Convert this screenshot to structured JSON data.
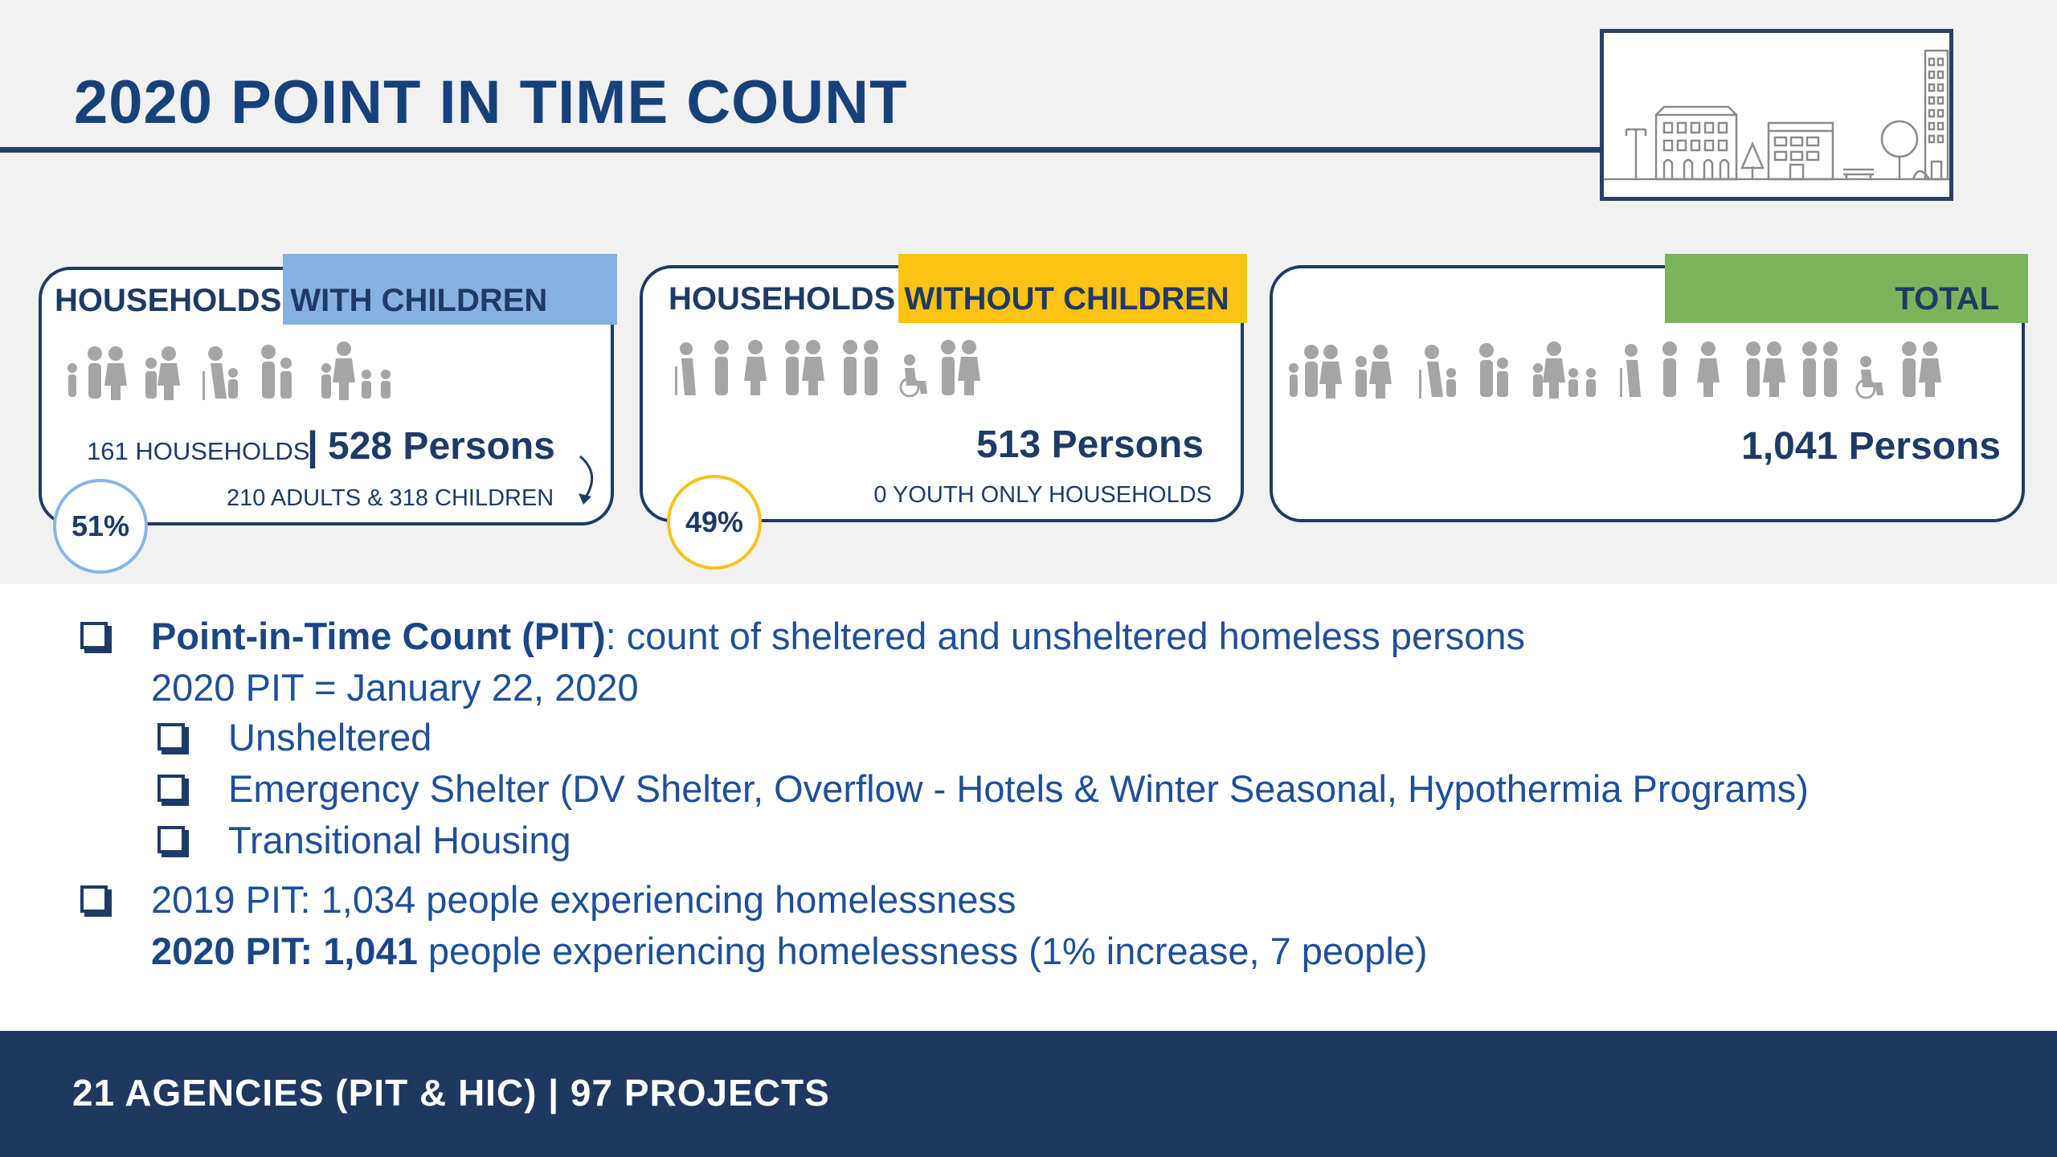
{
  "title": "2020 POINT IN TIME COUNT",
  "cards": {
    "with_children": {
      "label_plain": "HOUSEHOLDS ",
      "label_highlight": "WITH CHILDREN",
      "households": "161 HOUSEHOLDS",
      "separator": "|",
      "persons": "528 Persons",
      "breakdown": "210 ADULTS & 318 CHILDREN",
      "percent": "51%",
      "highlight_color": "#85b2e3",
      "circle_color": "#8ab4e6"
    },
    "without_children": {
      "label_plain": "HOUSEHOLDS ",
      "label_highlight": "WITHOUT CHILDREN",
      "persons": "513 Persons",
      "youth_note": "0 YOUTH ONLY HOUSEHOLDS",
      "percent": "49%",
      "highlight_color": "#fdc312",
      "circle_color": "#f6c21d"
    },
    "total": {
      "label": "TOTAL",
      "persons": "1,041 Persons",
      "highlight_color": "#7ab55c"
    }
  },
  "bullets": {
    "pit_definition": {
      "bold": "Point-in-Time Count (PIT)",
      "text": ": count of sheltered and unsheltered homeless persons",
      "line2": "2020 PIT = January 22, 2020"
    },
    "sub_items": [
      "Unsheltered",
      "Emergency Shelter (DV Shelter, Overflow - Hotels & Winter Seasonal, Hypothermia Programs)",
      "Transitional Housing"
    ],
    "comparison": {
      "line1": "2019 PIT: 1,034 people experiencing homelessness",
      "line2_bold": "2020 PIT: 1,041",
      "line2_text": " people experiencing homelessness (1% increase, 7 people)"
    }
  },
  "footer": "21 AGENCIES (PIT & HIC) | 97 PROJECTS",
  "colors": {
    "navy": "#1f3a66",
    "title_blue": "#17417a",
    "text_blue": "#1f4f99",
    "footer_bg": "#1f3862",
    "icon_gray": "#a5a5a5"
  },
  "icons": {
    "people_row": "family-people-icons",
    "skyline": "city-skyline-icon",
    "bullet": "checkbox-square-icon"
  }
}
